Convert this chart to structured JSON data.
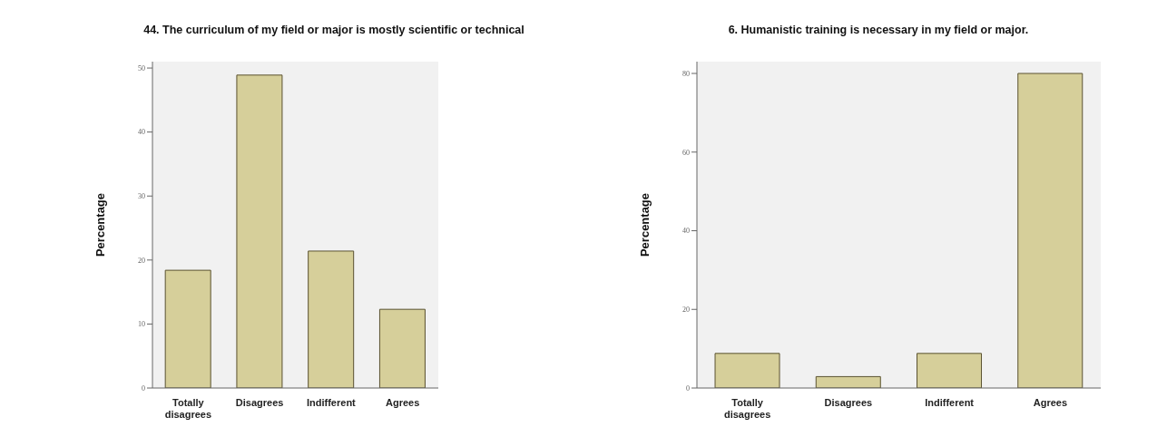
{
  "chart_data": [
    {
      "type": "bar",
      "title": "44. The curriculum of my field or major is mostly scientific or technical",
      "ylabel": "Percentage",
      "categories": [
        "Totally disagrees",
        "Disagrees",
        "Indifferent",
        "Agrees"
      ],
      "values": [
        18.4,
        48.9,
        21.4,
        12.3
      ],
      "color": "#d6cf9a",
      "ylim": [
        0,
        51
      ],
      "yticks": [
        0,
        10,
        20,
        30,
        40,
        50
      ],
      "grid": false,
      "legend": false
    },
    {
      "type": "bar",
      "title": "6. Humanistic training is necessary in my field or major.",
      "ylabel": "Percentage",
      "categories": [
        "Totally disagrees",
        "Disagrees",
        "Indifferent",
        "Agrees"
      ],
      "values": [
        8.8,
        2.9,
        8.8,
        80
      ],
      "color": "#d6cf9a",
      "ylim": [
        0,
        83
      ],
      "yticks": [
        0,
        20,
        40,
        60,
        80
      ],
      "grid": false,
      "legend": false
    }
  ]
}
